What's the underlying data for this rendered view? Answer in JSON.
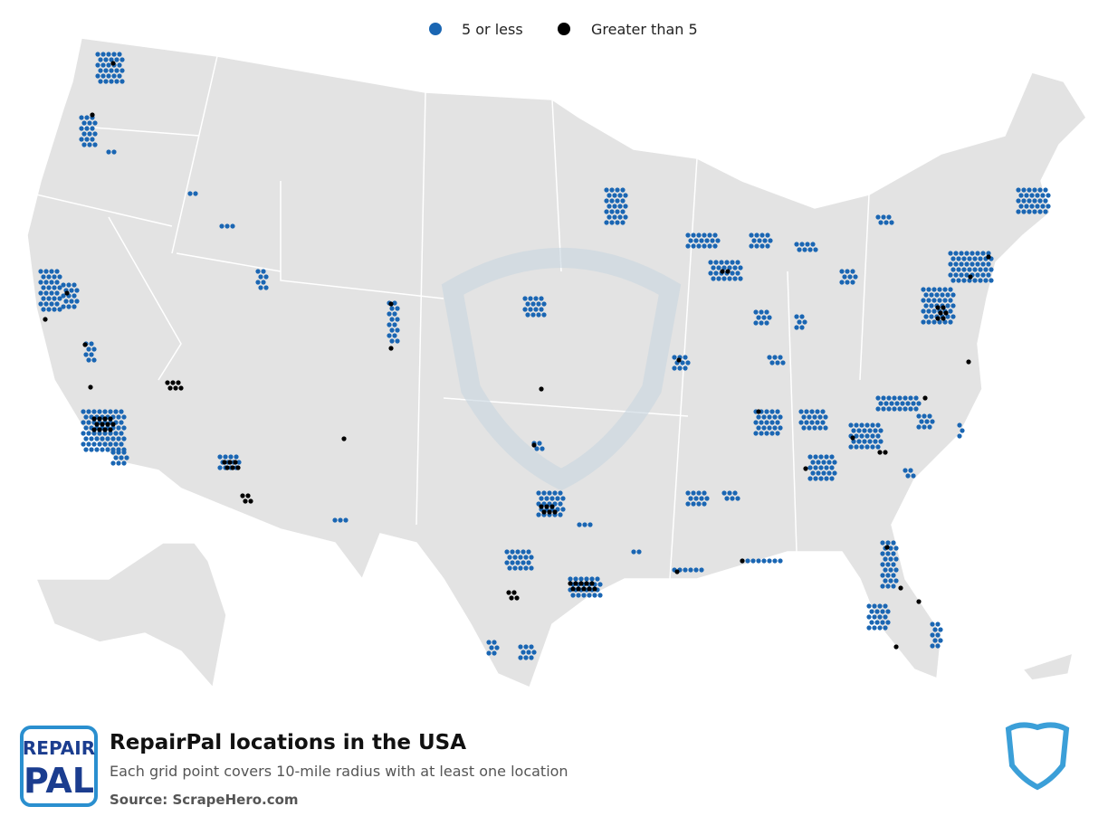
{
  "legend": [
    {
      "label": "5 or less",
      "color": "#1a66b3"
    },
    {
      "label": "Greater than 5",
      "color": "#000000"
    }
  ],
  "footer": {
    "logo": {
      "line1": "REPAIR",
      "line2": "PAL"
    },
    "title": "RepairPal locations in the USA",
    "subtitle": "Each grid point covers 10-mile radius with at least one location",
    "source": "Source: ScrapeHero.com"
  }
}
